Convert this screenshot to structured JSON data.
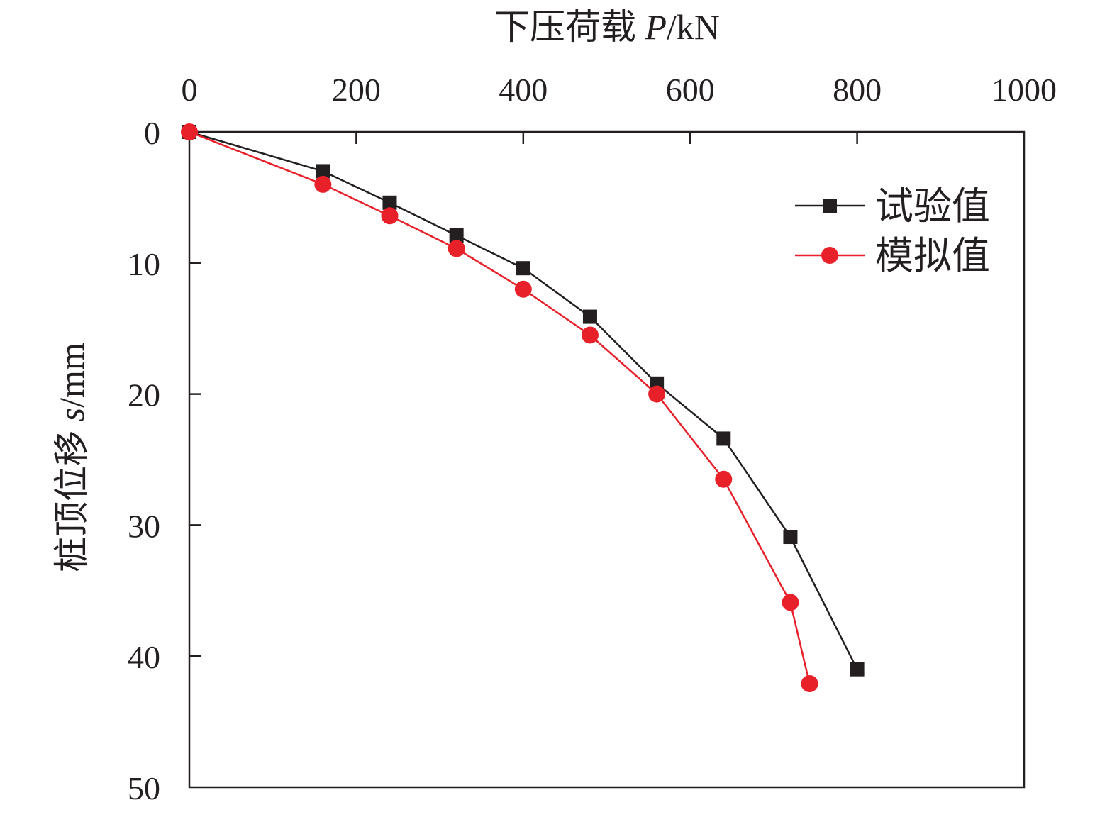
{
  "chart_data": {
    "type": "line",
    "xlabel": "下压荷载 P/kN",
    "xlabel_main": "下压荷载 ",
    "xlabel_var": "P",
    "xlabel_unit": "/kN",
    "ylabel": "桩顶位移 s/mm",
    "ylabel_main": "桩顶位移 ",
    "ylabel_var": "s",
    "ylabel_unit": "/mm",
    "xlim": [
      0,
      1000
    ],
    "ylim": [
      0,
      50
    ],
    "x_axis_position": "top",
    "y_axis_inverted": true,
    "x_ticks": [
      0,
      200,
      400,
      600,
      800,
      1000
    ],
    "x_tick_labels": [
      "0",
      "200",
      "400",
      "600",
      "800",
      "1000"
    ],
    "y_ticks": [
      0,
      10,
      20,
      30,
      40,
      50
    ],
    "y_tick_labels": [
      "0",
      "10",
      "20",
      "30",
      "40",
      "50"
    ],
    "grid": false,
    "legend_position": "top-right",
    "series": [
      {
        "name": "试验值",
        "color": "#231f20",
        "marker": "square",
        "points": [
          [
            0,
            0
          ],
          [
            160,
            3.0
          ],
          [
            240,
            5.4
          ],
          [
            320,
            7.9
          ],
          [
            400,
            10.4
          ],
          [
            480,
            14.1
          ],
          [
            560,
            19.2
          ],
          [
            640,
            23.4
          ],
          [
            720,
            30.9
          ],
          [
            800,
            41.0
          ]
        ]
      },
      {
        "name": "模拟值",
        "color": "#e8202a",
        "marker": "circle",
        "points": [
          [
            0,
            0
          ],
          [
            160,
            4.0
          ],
          [
            240,
            6.4
          ],
          [
            320,
            8.9
          ],
          [
            400,
            12.0
          ],
          [
            480,
            15.5
          ],
          [
            560,
            20.0
          ],
          [
            640,
            26.5
          ],
          [
            720,
            35.9
          ],
          [
            743,
            42.1
          ]
        ]
      }
    ]
  }
}
